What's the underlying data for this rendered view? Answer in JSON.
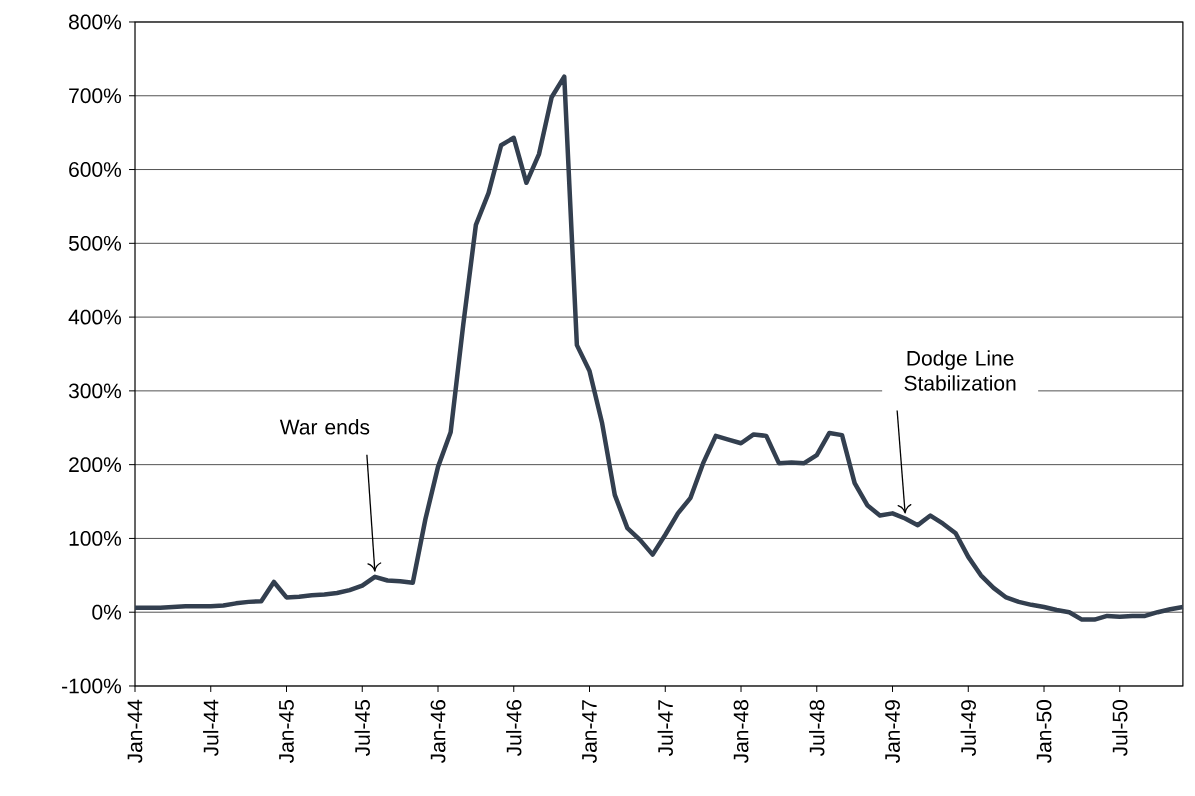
{
  "chart_data": {
    "type": "line",
    "x": [
      "1944-01",
      "1944-02",
      "1944-03",
      "1944-04",
      "1944-05",
      "1944-06",
      "1944-07",
      "1944-08",
      "1944-09",
      "1944-10",
      "1944-11",
      "1944-12",
      "1945-01",
      "1945-02",
      "1945-03",
      "1945-04",
      "1945-05",
      "1945-06",
      "1945-07",
      "1945-08",
      "1945-09",
      "1945-10",
      "1945-11",
      "1945-12",
      "1946-01",
      "1946-02",
      "1946-03",
      "1946-04",
      "1946-05",
      "1946-06",
      "1946-07",
      "1946-08",
      "1946-09",
      "1946-10",
      "1946-11",
      "1946-12",
      "1947-01",
      "1947-02",
      "1947-03",
      "1947-04",
      "1947-05",
      "1947-06",
      "1947-07",
      "1947-08",
      "1947-09",
      "1947-10",
      "1947-11",
      "1947-12",
      "1948-01",
      "1948-02",
      "1948-03",
      "1948-04",
      "1948-05",
      "1948-06",
      "1948-07",
      "1948-08",
      "1948-09",
      "1948-10",
      "1948-11",
      "1948-12",
      "1949-01",
      "1949-02",
      "1949-03",
      "1949-04",
      "1949-05",
      "1949-06",
      "1949-07",
      "1949-08",
      "1949-09",
      "1949-10",
      "1949-11",
      "1949-12",
      "1950-01",
      "1950-02",
      "1950-03",
      "1950-04",
      "1950-05",
      "1950-06",
      "1950-07",
      "1950-08",
      "1950-09",
      "1950-10",
      "1950-11",
      "1950-12"
    ],
    "values": [
      6,
      6,
      6,
      7,
      8,
      8,
      8,
      9,
      12,
      14,
      15,
      41,
      20,
      21,
      23,
      24,
      26,
      30,
      36,
      48,
      43,
      42,
      40,
      126,
      197,
      244,
      390,
      525,
      568,
      633,
      643,
      582,
      621,
      698,
      726,
      362,
      327,
      256,
      159,
      114,
      98,
      78,
      105,
      134,
      155,
      202,
      239,
      234,
      229,
      241,
      239,
      202,
      203,
      202,
      213,
      243,
      240,
      175,
      145,
      131,
      134,
      127,
      118,
      131,
      120,
      107,
      75,
      50,
      33,
      20,
      14,
      10,
      7,
      3,
      0,
      -10,
      -10,
      -5,
      -6,
      -5,
      -5,
      0,
      4,
      7
    ],
    "color": "#333f4f",
    "xlim": [
      "1944-01",
      "1950-12"
    ],
    "xticks": [
      {
        "value": "1944-01",
        "label": "Jan-44"
      },
      {
        "value": "1944-07",
        "label": "Jul-44"
      },
      {
        "value": "1945-01",
        "label": "Jan-45"
      },
      {
        "value": "1945-07",
        "label": "Jul-45"
      },
      {
        "value": "1946-01",
        "label": "Jan-46"
      },
      {
        "value": "1946-07",
        "label": "Jul-46"
      },
      {
        "value": "1947-01",
        "label": "Jan-47"
      },
      {
        "value": "1947-07",
        "label": "Jul-47"
      },
      {
        "value": "1948-01",
        "label": "Jan-48"
      },
      {
        "value": "1948-07",
        "label": "Jul-48"
      },
      {
        "value": "1949-01",
        "label": "Jan-49"
      },
      {
        "value": "1949-07",
        "label": "Jul-49"
      },
      {
        "value": "1950-01",
        "label": "Jan-50"
      },
      {
        "value": "1950-07",
        "label": "Jul-50"
      }
    ],
    "ylim": [
      -100,
      800
    ],
    "yticks": [
      {
        "value": -100,
        "label": "-100%"
      },
      {
        "value": 0,
        "label": "0%"
      },
      {
        "value": 100,
        "label": "100%"
      },
      {
        "value": 200,
        "label": "200%"
      },
      {
        "value": 300,
        "label": "300%"
      },
      {
        "value": 400,
        "label": "400%"
      },
      {
        "value": 500,
        "label": "500%"
      },
      {
        "value": 600,
        "label": "600%"
      },
      {
        "value": 700,
        "label": "700%"
      },
      {
        "value": 800,
        "label": "800%"
      }
    ],
    "grid": "y",
    "marker": "none",
    "line_style": "solid",
    "annotations": [
      {
        "text": "War ends",
        "x": "1945-08",
        "y": 48
      },
      {
        "text": "Dodge Line Stabilization",
        "x": "1949-02",
        "y": 127
      }
    ]
  }
}
